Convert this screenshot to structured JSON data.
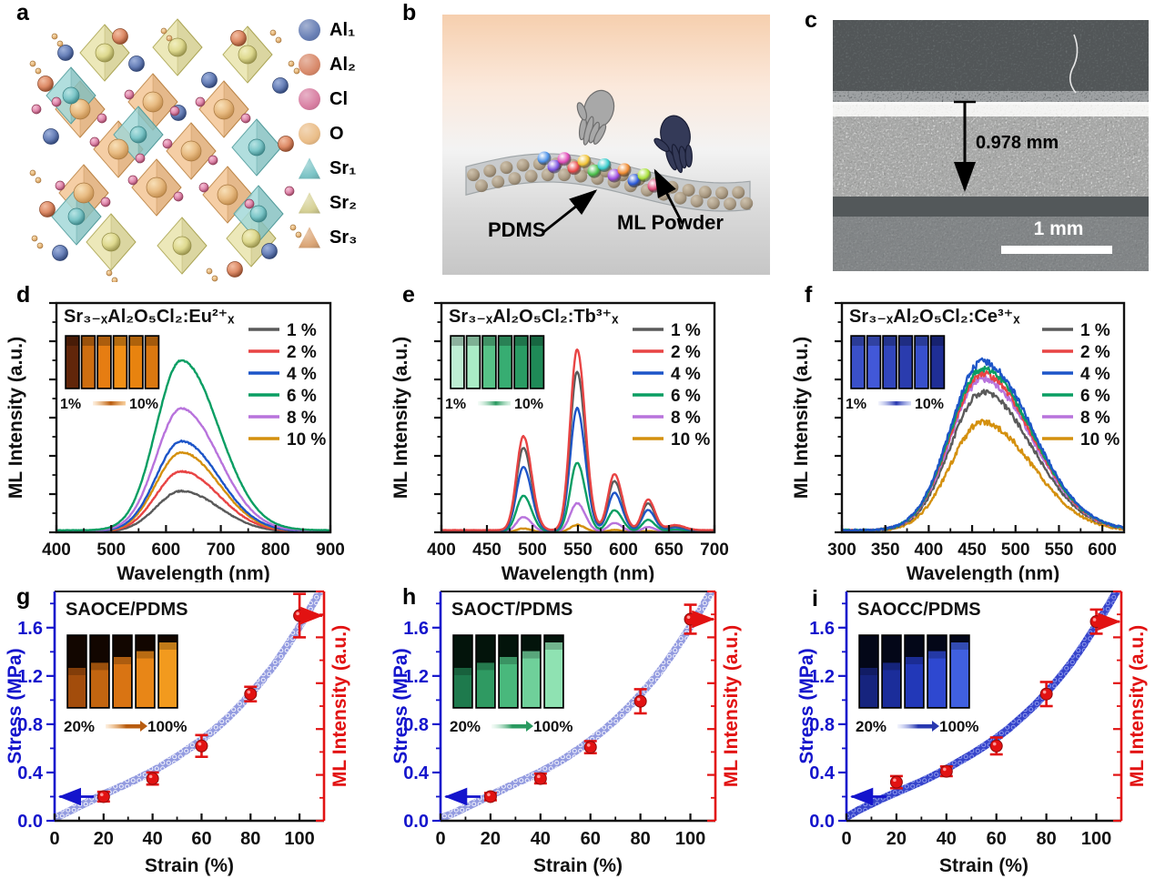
{
  "panels": {
    "a": {
      "label": "a",
      "legend": [
        {
          "label": "Al₁",
          "shape": "sphere",
          "color": "#687fb5"
        },
        {
          "label": "Al₂",
          "shape": "sphere",
          "color": "#d8896a"
        },
        {
          "label": "Cl",
          "shape": "sphere",
          "color": "#d87fa2"
        },
        {
          "label": "O",
          "shape": "sphere",
          "color": "#eabd88"
        },
        {
          "label": "Sr₁",
          "shape": "tetra",
          "color": "#7cc4c6"
        },
        {
          "label": "Sr₂",
          "shape": "tetra",
          "color": "#d6d196"
        },
        {
          "label": "Sr₃",
          "shape": "tetra",
          "color": "#dba677"
        }
      ]
    },
    "b": {
      "label": "b",
      "annotations": {
        "pdms": "PDMS",
        "ml_powder": "ML Powder"
      }
    },
    "c": {
      "label": "c",
      "thickness_label": "0.978 mm",
      "scale_bar_label": "1 mm"
    },
    "d": {
      "label": "d"
    },
    "e": {
      "label": "e"
    },
    "f": {
      "label": "f"
    },
    "g": {
      "label": "g"
    },
    "h": {
      "label": "h"
    },
    "i": {
      "label": "i"
    }
  },
  "chart_data": [
    {
      "panel": "d",
      "type": "line",
      "title": "Sr₃₋ₓAl₂O₅Cl₂:Eu²⁺ₓ",
      "xlabel": "Wavelength (nm)",
      "ylabel": "ML Intensity (a.u.)",
      "xlim": [
        400,
        900
      ],
      "xticks": [
        400,
        500,
        600,
        700,
        800,
        900
      ],
      "x_minor_step": 50,
      "ylim": [
        0,
        1.35
      ],
      "noise": 0.006,
      "peaks": {
        "centers": [
          628
        ],
        "rel_heights": [
          1.0
        ],
        "sigma_left": [
          46
        ],
        "sigma_right": [
          68
        ]
      },
      "series": [
        {
          "name": "1 %",
          "color": "#5a5a5a",
          "amplitude": 0.24
        },
        {
          "name": "2 %",
          "color": "#e84444",
          "amplitude": 0.355
        },
        {
          "name": "4 %",
          "color": "#1d55c8",
          "amplitude": 0.53
        },
        {
          "name": "6 %",
          "color": "#0a9e63",
          "amplitude": 1.0
        },
        {
          "name": "8 %",
          "color": "#b873dc",
          "amplitude": 0.72
        },
        {
          "name": "10 %",
          "color": "#d4900e",
          "amplitude": 0.465
        }
      ],
      "draw_order": [
        0,
        1,
        5,
        2,
        4,
        3
      ],
      "inset": {
        "labels": [
          "1%",
          "10%"
        ],
        "glow": "orange",
        "strips": 6
      }
    },
    {
      "panel": "e",
      "type": "line",
      "title": "Sr₃₋ₓAl₂O₅Cl₂:Tb³⁺ₓ",
      "xlabel": "Wavelength (nm)",
      "ylabel": "ML Intensity (a.u.)",
      "xlim": [
        400,
        700
      ],
      "xticks": [
        400,
        450,
        500,
        550,
        600,
        650,
        700
      ],
      "x_minor_step": 25,
      "ylim": [
        0,
        1.27
      ],
      "noise": 0.004,
      "peaks": {
        "centers": [
          490,
          549,
          590,
          627,
          657
        ],
        "rel_heights": [
          0.52,
          1.0,
          0.31,
          0.17,
          0.028
        ],
        "sigma_left": [
          7.5,
          7.5,
          7.0,
          6.5,
          9.0
        ],
        "sigma_right": [
          9.0,
          9.0,
          8.5,
          7.5,
          10.0
        ]
      },
      "series": [
        {
          "name": "1 %",
          "color": "#5a5a5a",
          "amplitude": 0.88
        },
        {
          "name": "2 %",
          "color": "#e84444",
          "amplitude": 1.0
        },
        {
          "name": "4 %",
          "color": "#1d55c8",
          "amplitude": 0.68
        },
        {
          "name": "6 %",
          "color": "#0a9e63",
          "amplitude": 0.38
        },
        {
          "name": "8 %",
          "color": "#b873dc",
          "amplitude": 0.16
        },
        {
          "name": "10 %",
          "color": "#d4900e",
          "amplitude": 0.04
        }
      ],
      "draw_order": [
        5,
        4,
        3,
        2,
        0,
        1
      ],
      "inset": {
        "labels": [
          "1%",
          "10%"
        ],
        "glow": "green",
        "strips": 6
      }
    },
    {
      "panel": "f",
      "type": "line",
      "title": "Sr₃₋ₓAl₂O₅Cl₂:Ce³⁺ₓ",
      "xlabel": "Wavelength (nm)",
      "ylabel": "ML Intensity (a.u.)",
      "xlim": [
        300,
        625
      ],
      "xticks": [
        300,
        350,
        400,
        450,
        500,
        550,
        600
      ],
      "x_minor_step": 25,
      "ylim": [
        0,
        1.36
      ],
      "noise": 0.03,
      "peaks": {
        "centers": [
          462
        ],
        "rel_heights": [
          1.0
        ],
        "sigma_left": [
          37
        ],
        "sigma_right": [
          57
        ]
      },
      "series": [
        {
          "name": "1 %",
          "color": "#5a5a5a",
          "amplitude": 0.82
        },
        {
          "name": "2 %",
          "color": "#e84444",
          "amplitude": 0.93
        },
        {
          "name": "4 %",
          "color": "#1d55c8",
          "amplitude": 1.0
        },
        {
          "name": "6 %",
          "color": "#0a9e63",
          "amplitude": 0.96
        },
        {
          "name": "8 %",
          "color": "#b873dc",
          "amplitude": 0.9
        },
        {
          "name": "10 %",
          "color": "#d4900e",
          "amplitude": 0.645
        }
      ],
      "draw_order": [
        5,
        0,
        4,
        1,
        3,
        2
      ],
      "inset": {
        "labels": [
          "1%",
          "10%"
        ],
        "glow": "blue",
        "strips": 6
      }
    },
    {
      "panel": "g",
      "type": "stress",
      "title": "SAOCE/PDMS",
      "xlabel": "Strain (%)",
      "ylabel_left": "Stress (MPa)",
      "ylabel_right": "ML Intensity (a.u.)",
      "xlim": [
        0,
        110
      ],
      "xticks": [
        0,
        20,
        40,
        60,
        80,
        100
      ],
      "x_minor_step": 10,
      "ylim": [
        0,
        1.9
      ],
      "yticks": [
        0,
        0.4,
        0.8,
        1.2,
        1.6
      ],
      "y_minor_step": 0.2,
      "stress_curve": {
        "x": [
          0,
          5,
          10,
          15,
          20,
          25,
          30,
          35,
          40,
          45,
          50,
          55,
          60,
          65,
          70,
          75,
          80,
          85,
          90,
          95,
          100,
          105,
          110
        ],
        "y": [
          0.02,
          0.07,
          0.12,
          0.17,
          0.22,
          0.265,
          0.31,
          0.36,
          0.41,
          0.47,
          0.53,
          0.6,
          0.67,
          0.75,
          0.84,
          0.94,
          1.05,
          1.17,
          1.3,
          1.45,
          1.61,
          1.78,
          1.96
        ]
      },
      "ml_points": {
        "x": [
          20,
          40,
          60,
          80,
          100
        ],
        "y": [
          0.2,
          0.35,
          0.62,
          1.05,
          1.7
        ],
        "yerr": [
          0.04,
          0.05,
          0.09,
          0.06,
          0.18
        ]
      },
      "curve_color": "#8d96de",
      "curve_dot_color": "#ffffff",
      "axis_left_color": "#1414cc",
      "axis_right_color": "#e21212",
      "inset": {
        "labels": [
          "20%",
          "100%"
        ],
        "glow": "orange",
        "strips": 5
      }
    },
    {
      "panel": "h",
      "type": "stress",
      "title": "SAOCT/PDMS",
      "xlabel": "Strain (%)",
      "ylabel_left": "Stress (MPa)",
      "ylabel_right": "ML Intensity (a.u.)",
      "xlim": [
        0,
        110
      ],
      "xticks": [
        0,
        20,
        40,
        60,
        80,
        100
      ],
      "x_minor_step": 10,
      "ylim": [
        0,
        1.9
      ],
      "yticks": [
        0,
        0.4,
        0.8,
        1.2,
        1.6
      ],
      "y_minor_step": 0.2,
      "stress_curve": {
        "x": [
          0,
          5,
          10,
          15,
          20,
          25,
          30,
          35,
          40,
          45,
          50,
          55,
          60,
          65,
          70,
          75,
          80,
          85,
          90,
          95,
          100,
          105,
          110
        ],
        "y": [
          0.02,
          0.06,
          0.11,
          0.16,
          0.21,
          0.26,
          0.31,
          0.355,
          0.405,
          0.46,
          0.52,
          0.59,
          0.665,
          0.745,
          0.835,
          0.935,
          1.045,
          1.165,
          1.3,
          1.45,
          1.61,
          1.78,
          1.96
        ]
      },
      "ml_points": {
        "x": [
          20,
          40,
          60,
          80,
          100
        ],
        "y": [
          0.2,
          0.35,
          0.61,
          0.99,
          1.67
        ],
        "yerr": [
          0.03,
          0.04,
          0.05,
          0.1,
          0.12
        ]
      },
      "curve_color": "#8d96de",
      "curve_dot_color": "#ffffff",
      "axis_left_color": "#1414cc",
      "axis_right_color": "#e21212",
      "inset": {
        "labels": [
          "20%",
          "100%"
        ],
        "glow": "green",
        "strips": 5
      }
    },
    {
      "panel": "i",
      "type": "stress",
      "title": "SAOCC/PDMS",
      "xlabel": "Strain (%)",
      "ylabel_left": "Stress (MPa)",
      "ylabel_right": "ML Intensity (a.u.)",
      "xlim": [
        0,
        110
      ],
      "xticks": [
        0,
        20,
        40,
        60,
        80,
        100
      ],
      "x_minor_step": 10,
      "ylim": [
        0,
        1.9
      ],
      "yticks": [
        0,
        0.4,
        0.8,
        1.2,
        1.6
      ],
      "y_minor_step": 0.2,
      "stress_curve": {
        "x": [
          0,
          5,
          10,
          15,
          20,
          25,
          30,
          35,
          40,
          45,
          50,
          55,
          60,
          65,
          70,
          75,
          80,
          85,
          90,
          95,
          100,
          105,
          110
        ],
        "y": [
          0.03,
          0.09,
          0.14,
          0.19,
          0.235,
          0.28,
          0.325,
          0.375,
          0.43,
          0.49,
          0.55,
          0.615,
          0.685,
          0.765,
          0.855,
          0.95,
          1.06,
          1.18,
          1.31,
          1.46,
          1.62,
          1.79,
          1.97
        ]
      },
      "ml_points": {
        "x": [
          20,
          40,
          60,
          80,
          100
        ],
        "y": [
          0.32,
          0.41,
          0.62,
          1.05,
          1.65
        ],
        "yerr": [
          0.05,
          0.04,
          0.07,
          0.1,
          0.1
        ]
      },
      "curve_color": "#2b3ac8",
      "curve_dot_color": "#9aa6f0",
      "axis_left_color": "#1414cc",
      "axis_right_color": "#e21212",
      "inset": {
        "labels": [
          "20%",
          "100%"
        ],
        "glow": "blue",
        "strips": 5
      }
    }
  ]
}
